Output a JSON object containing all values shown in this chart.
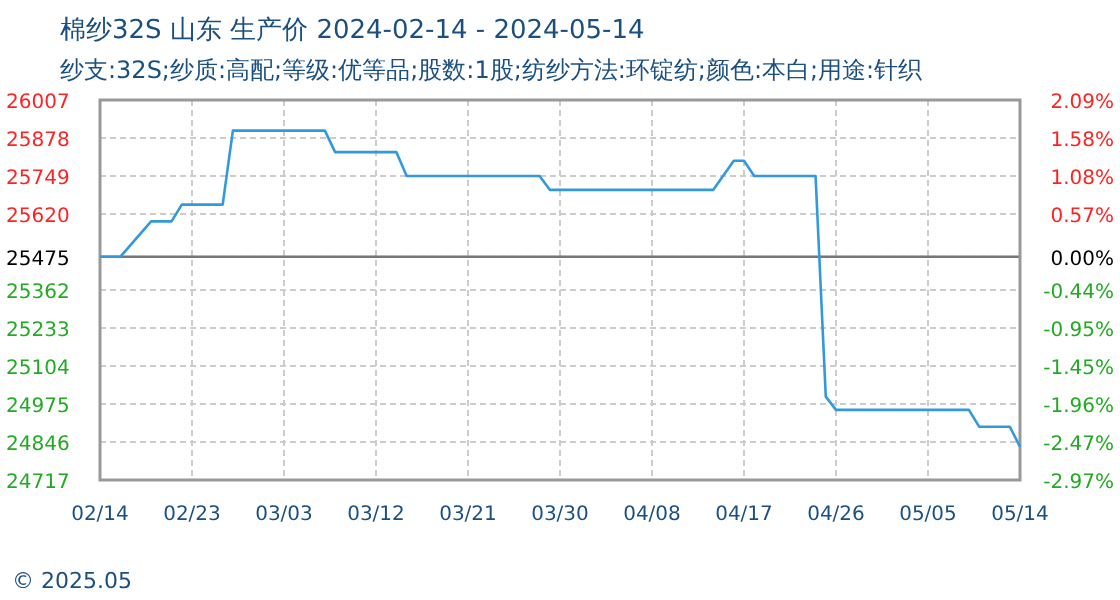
{
  "chart_data": {
    "type": "line",
    "title": "棉纱32S 山东 生产价 2024-02-14 - 2024-05-14",
    "subtitle": "纱支:32S;纱质:高配;等级:优等品;股数:1股;纺纱方法:环锭纺;颜色:本白;用途:针织",
    "annotations": [
      "© 2025.05"
    ],
    "series": [
      {
        "color": "#3399dd",
        "x": [
          "2024-02-14",
          "2024-02-16",
          "2024-02-19",
          "2024-02-21",
          "2024-02-22",
          "2024-02-26",
          "2024-02-27",
          "2024-03-07",
          "2024-03-08",
          "2024-03-14",
          "2024-03-15",
          "2024-03-28",
          "2024-03-29",
          "2024-04-14",
          "2024-04-16",
          "2024-04-17",
          "2024-04-18",
          "2024-04-24",
          "2024-04-25",
          "2024-04-26",
          "2024-05-09",
          "2024-05-10",
          "2024-05-13",
          "2024-05-14"
        ],
        "values": [
          25475,
          25475,
          25595,
          25595,
          25652,
          25652,
          25903,
          25903,
          25830,
          25830,
          25749,
          25749,
          25702,
          25702,
          25801,
          25801,
          25749,
          25749,
          25000,
          24955,
          24955,
          24898,
          24898,
          24830
        ]
      }
    ],
    "xlim": [
      "2024-02-14",
      "2024-05-14"
    ],
    "xticks": [
      {
        "value": "2024-02-14",
        "label": "02/14"
      },
      {
        "value": "2024-02-23",
        "label": "02/23"
      },
      {
        "value": "2024-03-03",
        "label": "03/03"
      },
      {
        "value": "2024-03-12",
        "label": "03/12"
      },
      {
        "value": "2024-03-21",
        "label": "03/21"
      },
      {
        "value": "2024-03-30",
        "label": "03/30"
      },
      {
        "value": "2024-04-08",
        "label": "04/08"
      },
      {
        "value": "2024-04-17",
        "label": "04/17"
      },
      {
        "value": "2024-04-26",
        "label": "04/26"
      },
      {
        "value": "2024-05-05",
        "label": "05/05"
      },
      {
        "value": "2024-05-14",
        "label": "05/14"
      }
    ],
    "ylim": [
      24717,
      26007
    ],
    "yticks": [
      26007,
      25878,
      25749,
      25620,
      25475,
      25362,
      25233,
      25104,
      24975,
      24846,
      24717
    ],
    "y2lim": [
      -2.97,
      2.09
    ],
    "y2ticks": [
      {
        "value": 2.09,
        "label": "2.09%"
      },
      {
        "value": 1.58,
        "label": "1.58%"
      },
      {
        "value": 1.08,
        "label": "1.08%"
      },
      {
        "value": 0.57,
        "label": "0.57%"
      },
      {
        "value": 0,
        "label": "0.00%"
      },
      {
        "value": -0.44,
        "label": "-0.44%"
      },
      {
        "value": -0.95,
        "label": "-0.95%"
      },
      {
        "value": -1.45,
        "label": "-1.45%"
      },
      {
        "value": -1.96,
        "label": "-1.96%"
      },
      {
        "value": -2.47,
        "label": "-2.47%"
      },
      {
        "value": -2.97,
        "label": "-2.97%"
      }
    ],
    "ref_lines": [
      {
        "axis": "y",
        "value": 25475,
        "color": "#777777",
        "line_style": "solid"
      }
    ],
    "grid": true,
    "line_style": "solid",
    "marker": "none"
  }
}
